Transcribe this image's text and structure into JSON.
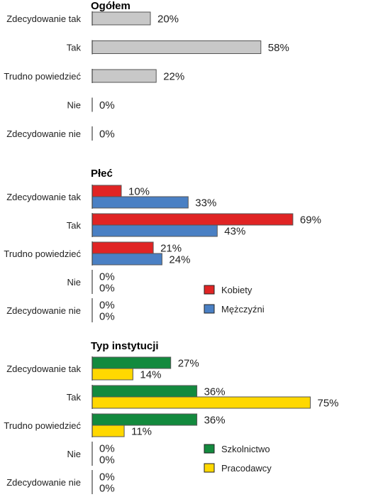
{
  "chart_data": [
    {
      "type": "bar",
      "orientation": "horizontal",
      "title": "Ogółem",
      "categories": [
        "Zdecydowanie tak",
        "Tak",
        "Trudno powiedzieć",
        "Nie",
        "Zdecydowanie nie"
      ],
      "series": [
        {
          "values": [
            20,
            58,
            22,
            0,
            0
          ],
          "color": "#c8c8c8"
        }
      ],
      "value_suffix": "%",
      "xlim": [
        0,
        100
      ],
      "grid": false,
      "legend": null
    },
    {
      "type": "bar",
      "orientation": "horizontal",
      "title": "Płeć",
      "categories": [
        "Zdecydowanie tak",
        "Tak",
        "Trudno powiedzieć",
        "Nie",
        "Zdecydowanie nie"
      ],
      "series": [
        {
          "name": "Kobiety",
          "values": [
            10,
            69,
            21,
            0,
            0
          ],
          "color": "#e02424"
        },
        {
          "name": "Mężczyźni",
          "values": [
            33,
            43,
            24,
            0,
            0
          ],
          "color": "#4a80c4"
        }
      ],
      "value_suffix": "%",
      "xlim": [
        0,
        100
      ],
      "grid": false,
      "legend": "bottom-right"
    },
    {
      "type": "bar",
      "orientation": "horizontal",
      "title": "Typ instytucji",
      "categories": [
        "Zdecydowanie tak",
        "Tak",
        "Trudno powiedzieć",
        "Nie",
        "Zdecydowanie nie"
      ],
      "series": [
        {
          "name": "Szkolnictwo",
          "values": [
            27,
            36,
            36,
            0,
            0
          ],
          "color": "#138a3e"
        },
        {
          "name": "Pracodawcy",
          "values": [
            14,
            75,
            11,
            0,
            0
          ],
          "color": "#ffd800"
        }
      ],
      "value_suffix": "%",
      "xlim": [
        0,
        100
      ],
      "grid": false,
      "legend": "bottom-right"
    }
  ]
}
